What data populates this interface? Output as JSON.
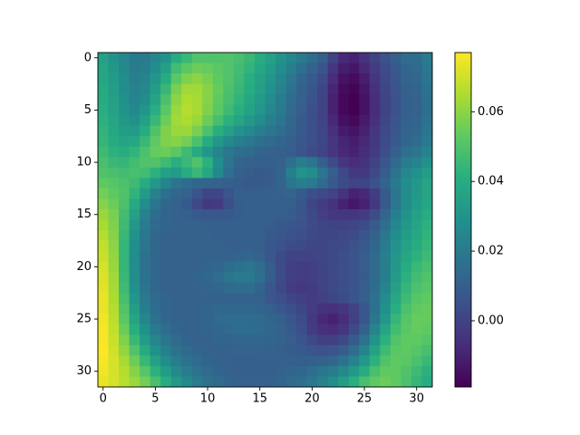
{
  "chart_data": {
    "type": "heatmap",
    "title": "",
    "xlabel": "",
    "ylabel": "",
    "x_ticks": [
      0,
      5,
      10,
      15,
      20,
      25,
      30
    ],
    "y_ticks": [
      0,
      5,
      10,
      15,
      20,
      25,
      30
    ],
    "xlim": [
      -0.5,
      31.5
    ],
    "ylim": [
      31.5,
      -0.5
    ],
    "grid": false,
    "colormap": "viridis",
    "colorbar": {
      "range": [
        -0.019,
        0.077
      ],
      "ticks": [
        0.0,
        0.02,
        0.04,
        0.06
      ],
      "tick_labels": [
        "0.00",
        "0.02",
        "0.04",
        "0.06"
      ]
    },
    "grid_size": [
      32,
      32
    ],
    "values": [
      [
        0.035,
        0.03,
        0.025,
        0.02,
        0.02,
        0.025,
        0.03,
        0.04,
        0.045,
        0.05,
        0.05,
        0.05,
        0.05,
        0.048,
        0.045,
        0.04,
        0.035,
        0.03,
        0.025,
        0.02,
        0.015,
        0.01,
        0.0,
        -0.008,
        -0.01,
        -0.005,
        0.0,
        0.005,
        0.01,
        0.015,
        0.015,
        0.02
      ],
      [
        0.037,
        0.032,
        0.026,
        0.021,
        0.022,
        0.028,
        0.035,
        0.047,
        0.052,
        0.055,
        0.054,
        0.052,
        0.05,
        0.047,
        0.043,
        0.038,
        0.033,
        0.028,
        0.022,
        0.016,
        0.011,
        0.006,
        -0.004,
        -0.011,
        -0.013,
        -0.008,
        -0.002,
        0.003,
        0.008,
        0.013,
        0.014,
        0.019
      ],
      [
        0.038,
        0.033,
        0.027,
        0.022,
        0.024,
        0.031,
        0.04,
        0.052,
        0.058,
        0.06,
        0.057,
        0.053,
        0.05,
        0.046,
        0.041,
        0.036,
        0.031,
        0.025,
        0.019,
        0.013,
        0.008,
        0.003,
        -0.007,
        -0.014,
        -0.016,
        -0.011,
        -0.004,
        0.002,
        0.007,
        0.012,
        0.013,
        0.018
      ],
      [
        0.039,
        0.034,
        0.028,
        0.023,
        0.026,
        0.034,
        0.045,
        0.057,
        0.063,
        0.063,
        0.059,
        0.054,
        0.049,
        0.045,
        0.04,
        0.035,
        0.029,
        0.023,
        0.017,
        0.011,
        0.006,
        0.001,
        -0.009,
        -0.016,
        -0.018,
        -0.013,
        -0.006,
        0.001,
        0.006,
        0.011,
        0.012,
        0.017
      ],
      [
        0.04,
        0.035,
        0.029,
        0.024,
        0.028,
        0.037,
        0.049,
        0.06,
        0.065,
        0.064,
        0.059,
        0.053,
        0.048,
        0.043,
        0.038,
        0.033,
        0.027,
        0.021,
        0.015,
        0.01,
        0.005,
        0.0,
        -0.01,
        -0.017,
        -0.019,
        -0.014,
        -0.007,
        0.0,
        0.005,
        0.01,
        0.011,
        0.016
      ],
      [
        0.041,
        0.036,
        0.03,
        0.026,
        0.031,
        0.041,
        0.052,
        0.062,
        0.066,
        0.064,
        0.058,
        0.052,
        0.046,
        0.041,
        0.036,
        0.031,
        0.025,
        0.02,
        0.014,
        0.009,
        0.004,
        0.0,
        -0.01,
        -0.017,
        -0.019,
        -0.014,
        -0.007,
        0.0,
        0.005,
        0.01,
        0.011,
        0.016
      ],
      [
        0.042,
        0.037,
        0.032,
        0.029,
        0.035,
        0.045,
        0.055,
        0.063,
        0.065,
        0.062,
        0.055,
        0.048,
        0.042,
        0.037,
        0.032,
        0.027,
        0.022,
        0.018,
        0.013,
        0.008,
        0.004,
        0.0,
        -0.008,
        -0.015,
        -0.017,
        -0.012,
        -0.006,
        0.001,
        0.006,
        0.011,
        0.012,
        0.017
      ],
      [
        0.043,
        0.038,
        0.034,
        0.033,
        0.04,
        0.05,
        0.058,
        0.062,
        0.062,
        0.057,
        0.049,
        0.041,
        0.035,
        0.03,
        0.026,
        0.022,
        0.018,
        0.015,
        0.012,
        0.008,
        0.004,
        0.001,
        -0.006,
        -0.012,
        -0.014,
        -0.01,
        -0.004,
        0.002,
        0.007,
        0.012,
        0.013,
        0.018
      ],
      [
        0.044,
        0.04,
        0.037,
        0.038,
        0.045,
        0.053,
        0.058,
        0.059,
        0.056,
        0.049,
        0.04,
        0.032,
        0.026,
        0.022,
        0.019,
        0.016,
        0.014,
        0.012,
        0.01,
        0.007,
        0.004,
        0.001,
        -0.004,
        -0.009,
        -0.011,
        -0.008,
        -0.003,
        0.003,
        0.008,
        0.013,
        0.015,
        0.02
      ],
      [
        0.046,
        0.042,
        0.04,
        0.043,
        0.049,
        0.054,
        0.055,
        0.052,
        0.046,
        0.039,
        0.031,
        0.024,
        0.019,
        0.016,
        0.014,
        0.012,
        0.011,
        0.01,
        0.009,
        0.006,
        0.003,
        0.0,
        -0.004,
        -0.008,
        -0.01,
        -0.007,
        -0.002,
        0.004,
        0.01,
        0.016,
        0.018,
        0.023
      ],
      [
        0.048,
        0.045,
        0.044,
        0.047,
        0.05,
        0.05,
        0.046,
        0.041,
        0.045,
        0.05,
        0.042,
        0.028,
        0.018,
        0.013,
        0.011,
        0.01,
        0.01,
        0.011,
        0.016,
        0.022,
        0.018,
        0.01,
        0.003,
        -0.004,
        -0.007,
        -0.005,
        0.0,
        0.007,
        0.014,
        0.021,
        0.024,
        0.029
      ],
      [
        0.05,
        0.048,
        0.047,
        0.048,
        0.047,
        0.042,
        0.035,
        0.033,
        0.04,
        0.045,
        0.038,
        0.026,
        0.016,
        0.011,
        0.009,
        0.008,
        0.009,
        0.012,
        0.022,
        0.03,
        0.027,
        0.018,
        0.009,
        0.002,
        -0.003,
        -0.003,
        0.002,
        0.009,
        0.017,
        0.025,
        0.029,
        0.034
      ],
      [
        0.053,
        0.051,
        0.049,
        0.046,
        0.04,
        0.032,
        0.024,
        0.018,
        0.015,
        0.013,
        0.012,
        0.011,
        0.01,
        0.009,
        0.008,
        0.008,
        0.009,
        0.012,
        0.018,
        0.022,
        0.02,
        0.014,
        0.008,
        0.003,
        0.0,
        0.001,
        0.005,
        0.012,
        0.02,
        0.028,
        0.032,
        0.037
      ],
      [
        0.056,
        0.053,
        0.05,
        0.043,
        0.033,
        0.023,
        0.016,
        0.013,
        0.011,
        0.006,
        0.001,
        0.001,
        0.006,
        0.01,
        0.01,
        0.01,
        0.01,
        0.011,
        0.012,
        0.008,
        0.004,
        0.002,
        0.0,
        -0.005,
        -0.01,
        -0.008,
        -0.002,
        0.008,
        0.018,
        0.027,
        0.032,
        0.037
      ],
      [
        0.059,
        0.055,
        0.049,
        0.039,
        0.027,
        0.018,
        0.013,
        0.011,
        0.008,
        0.002,
        -0.003,
        -0.002,
        0.004,
        0.009,
        0.01,
        0.01,
        0.01,
        0.01,
        0.01,
        0.006,
        0.001,
        -0.002,
        -0.005,
        -0.01,
        -0.013,
        -0.01,
        -0.003,
        0.008,
        0.019,
        0.028,
        0.033,
        0.038
      ],
      [
        0.062,
        0.057,
        0.047,
        0.035,
        0.023,
        0.015,
        0.012,
        0.011,
        0.01,
        0.008,
        0.007,
        0.007,
        0.008,
        0.009,
        0.01,
        0.01,
        0.01,
        0.01,
        0.009,
        0.006,
        0.002,
        -0.001,
        -0.003,
        -0.004,
        -0.004,
        -0.002,
        0.003,
        0.012,
        0.022,
        0.03,
        0.035,
        0.04
      ],
      [
        0.064,
        0.058,
        0.046,
        0.032,
        0.021,
        0.014,
        0.012,
        0.011,
        0.011,
        0.011,
        0.01,
        0.01,
        0.01,
        0.01,
        0.01,
        0.01,
        0.009,
        0.008,
        0.007,
        0.005,
        0.003,
        0.001,
        0.0,
        0.0,
        0.001,
        0.003,
        0.008,
        0.016,
        0.025,
        0.032,
        0.037,
        0.042
      ],
      [
        0.066,
        0.059,
        0.045,
        0.03,
        0.019,
        0.013,
        0.011,
        0.011,
        0.011,
        0.011,
        0.011,
        0.01,
        0.01,
        0.01,
        0.01,
        0.01,
        0.008,
        0.007,
        0.005,
        0.004,
        0.002,
        0.001,
        0.001,
        0.002,
        0.003,
        0.006,
        0.011,
        0.019,
        0.028,
        0.034,
        0.038,
        0.043
      ],
      [
        0.068,
        0.06,
        0.044,
        0.028,
        0.018,
        0.013,
        0.011,
        0.011,
        0.011,
        0.011,
        0.011,
        0.011,
        0.01,
        0.01,
        0.01,
        0.009,
        0.007,
        0.005,
        0.003,
        0.002,
        0.001,
        0.001,
        0.002,
        0.003,
        0.005,
        0.008,
        0.013,
        0.021,
        0.03,
        0.036,
        0.04,
        0.044
      ],
      [
        0.069,
        0.061,
        0.044,
        0.027,
        0.017,
        0.013,
        0.011,
        0.011,
        0.011,
        0.011,
        0.011,
        0.011,
        0.011,
        0.012,
        0.013,
        0.011,
        0.007,
        0.003,
        0.0,
        0.0,
        0.0,
        0.001,
        0.002,
        0.004,
        0.006,
        0.009,
        0.014,
        0.022,
        0.031,
        0.038,
        0.042,
        0.046
      ],
      [
        0.071,
        0.062,
        0.044,
        0.027,
        0.017,
        0.013,
        0.011,
        0.011,
        0.011,
        0.011,
        0.012,
        0.013,
        0.015,
        0.017,
        0.018,
        0.015,
        0.009,
        0.003,
        -0.001,
        -0.002,
        -0.001,
        0.0,
        0.002,
        0.004,
        0.006,
        0.009,
        0.014,
        0.022,
        0.032,
        0.04,
        0.045,
        0.048
      ],
      [
        0.072,
        0.063,
        0.045,
        0.028,
        0.017,
        0.013,
        0.011,
        0.011,
        0.011,
        0.012,
        0.013,
        0.015,
        0.018,
        0.02,
        0.02,
        0.016,
        0.009,
        0.003,
        -0.001,
        -0.002,
        -0.001,
        0.0,
        0.002,
        0.004,
        0.006,
        0.009,
        0.014,
        0.022,
        0.033,
        0.042,
        0.047,
        0.05
      ],
      [
        0.073,
        0.064,
        0.046,
        0.029,
        0.018,
        0.013,
        0.011,
        0.011,
        0.011,
        0.011,
        0.012,
        0.013,
        0.014,
        0.015,
        0.015,
        0.012,
        0.007,
        0.002,
        -0.002,
        -0.003,
        -0.002,
        0.0,
        0.002,
        0.004,
        0.006,
        0.009,
        0.015,
        0.024,
        0.035,
        0.044,
        0.049,
        0.051
      ],
      [
        0.074,
        0.065,
        0.048,
        0.031,
        0.02,
        0.014,
        0.012,
        0.011,
        0.011,
        0.011,
        0.011,
        0.011,
        0.011,
        0.011,
        0.011,
        0.01,
        0.007,
        0.004,
        0.001,
        -0.001,
        -0.002,
        -0.001,
        0.001,
        0.003,
        0.006,
        0.01,
        0.017,
        0.027,
        0.038,
        0.046,
        0.051,
        0.053
      ],
      [
        0.074,
        0.066,
        0.05,
        0.034,
        0.022,
        0.015,
        0.012,
        0.011,
        0.011,
        0.011,
        0.012,
        0.013,
        0.013,
        0.013,
        0.013,
        0.012,
        0.01,
        0.007,
        0.004,
        0.001,
        -0.002,
        -0.005,
        -0.006,
        -0.004,
        0.0,
        0.007,
        0.017,
        0.029,
        0.041,
        0.049,
        0.053,
        0.054
      ],
      [
        0.075,
        0.067,
        0.052,
        0.037,
        0.025,
        0.017,
        0.013,
        0.011,
        0.011,
        0.011,
        0.012,
        0.014,
        0.015,
        0.015,
        0.015,
        0.014,
        0.012,
        0.01,
        0.007,
        0.003,
        -0.003,
        -0.008,
        -0.01,
        -0.007,
        -0.001,
        0.007,
        0.019,
        0.032,
        0.044,
        0.051,
        0.054,
        0.054
      ],
      [
        0.076,
        0.068,
        0.055,
        0.041,
        0.029,
        0.02,
        0.015,
        0.012,
        0.011,
        0.011,
        0.012,
        0.013,
        0.014,
        0.015,
        0.015,
        0.014,
        0.013,
        0.011,
        0.008,
        0.004,
        -0.002,
        -0.006,
        -0.007,
        -0.004,
        0.002,
        0.011,
        0.024,
        0.037,
        0.047,
        0.052,
        0.054,
        0.053
      ],
      [
        0.076,
        0.069,
        0.058,
        0.045,
        0.033,
        0.024,
        0.018,
        0.014,
        0.012,
        0.011,
        0.011,
        0.012,
        0.012,
        0.013,
        0.013,
        0.013,
        0.012,
        0.011,
        0.009,
        0.006,
        0.002,
        -0.001,
        -0.001,
        0.002,
        0.008,
        0.017,
        0.03,
        0.042,
        0.05,
        0.053,
        0.053,
        0.051
      ],
      [
        0.077,
        0.07,
        0.061,
        0.05,
        0.039,
        0.029,
        0.022,
        0.017,
        0.014,
        0.012,
        0.011,
        0.011,
        0.011,
        0.011,
        0.011,
        0.011,
        0.011,
        0.01,
        0.009,
        0.008,
        0.006,
        0.005,
        0.006,
        0.009,
        0.015,
        0.024,
        0.036,
        0.046,
        0.052,
        0.053,
        0.051,
        0.048
      ],
      [
        0.076,
        0.071,
        0.064,
        0.055,
        0.045,
        0.035,
        0.027,
        0.021,
        0.017,
        0.014,
        0.012,
        0.011,
        0.01,
        0.01,
        0.01,
        0.01,
        0.01,
        0.01,
        0.01,
        0.01,
        0.01,
        0.011,
        0.013,
        0.017,
        0.023,
        0.032,
        0.042,
        0.05,
        0.053,
        0.052,
        0.049,
        0.045
      ],
      [
        0.075,
        0.071,
        0.066,
        0.059,
        0.051,
        0.042,
        0.033,
        0.026,
        0.021,
        0.017,
        0.014,
        0.012,
        0.011,
        0.01,
        0.01,
        0.01,
        0.01,
        0.011,
        0.012,
        0.013,
        0.015,
        0.018,
        0.021,
        0.026,
        0.032,
        0.04,
        0.048,
        0.053,
        0.053,
        0.05,
        0.046,
        0.042
      ],
      [
        0.074,
        0.071,
        0.067,
        0.062,
        0.056,
        0.048,
        0.04,
        0.032,
        0.026,
        0.021,
        0.017,
        0.014,
        0.012,
        0.011,
        0.011,
        0.011,
        0.011,
        0.012,
        0.014,
        0.016,
        0.019,
        0.023,
        0.028,
        0.034,
        0.041,
        0.048,
        0.053,
        0.055,
        0.053,
        0.049,
        0.044,
        0.04
      ]
    ]
  }
}
